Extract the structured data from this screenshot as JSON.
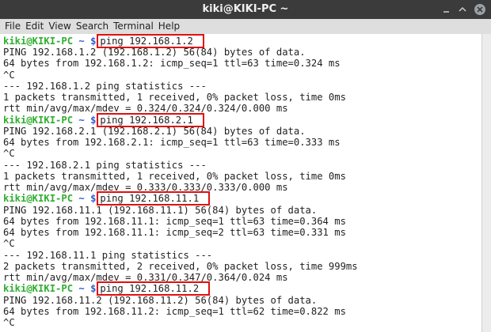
{
  "window": {
    "title": "kiki@KIKI-PC ~",
    "menu": [
      "File",
      "Edit",
      "View",
      "Search",
      "Terminal",
      "Help"
    ]
  },
  "terminal": {
    "lines": [
      {
        "user": "kiki@KIKI-PC",
        "path": "~ $",
        "command": "ping 192.168.1.2"
      },
      {
        "text": "PING 192.168.1.2 (192.168.1.2) 56(84) bytes of data."
      },
      {
        "text": "64 bytes from 192.168.1.2: icmp_seq=1 ttl=63 time=0.324 ms"
      },
      {
        "text": "^C"
      },
      {
        "text": "--- 192.168.1.2 ping statistics ---"
      },
      {
        "text": "1 packets transmitted, 1 received, 0% packet loss, time 0ms"
      },
      {
        "text": "rtt min/avg/max/mdev = 0.324/0.324/0.324/0.000 ms"
      },
      {
        "user": "kiki@KIKI-PC",
        "path": "~ $",
        "command": "ping 192.168.2.1"
      },
      {
        "text": "PING 192.168.2.1 (192.168.2.1) 56(84) bytes of data."
      },
      {
        "text": "64 bytes from 192.168.2.1: icmp_seq=1 ttl=63 time=0.333 ms"
      },
      {
        "text": "^C"
      },
      {
        "text": "--- 192.168.2.1 ping statistics ---"
      },
      {
        "text": "1 packets transmitted, 1 received, 0% packet loss, time 0ms"
      },
      {
        "text": "rtt min/avg/max/mdev = 0.333/0.333/0.333/0.000 ms"
      },
      {
        "user": "kiki@KIKI-PC",
        "path": "~ $",
        "command": "ping 192.168.11.1"
      },
      {
        "text": "PING 192.168.11.1 (192.168.11.1) 56(84) bytes of data."
      },
      {
        "text": "64 bytes from 192.168.11.1: icmp_seq=1 ttl=63 time=0.364 ms"
      },
      {
        "text": "64 bytes from 192.168.11.1: icmp_seq=2 ttl=63 time=0.331 ms"
      },
      {
        "text": "^C"
      },
      {
        "text": "--- 192.168.11.1 ping statistics ---"
      },
      {
        "text": "2 packets transmitted, 2 received, 0% packet loss, time 999ms"
      },
      {
        "text": "rtt min/avg/max/mdev = 0.331/0.347/0.364/0.024 ms"
      },
      {
        "user": "kiki@KIKI-PC",
        "path": "~ $",
        "command": "ping 192.168.11.2"
      },
      {
        "text": "PING 192.168.11.2 (192.168.11.2) 56(84) bytes of data."
      },
      {
        "text": "64 bytes from 192.168.11.2: icmp_seq=1 ttl=62 time=0.822 ms"
      },
      {
        "text": "^C"
      }
    ]
  }
}
